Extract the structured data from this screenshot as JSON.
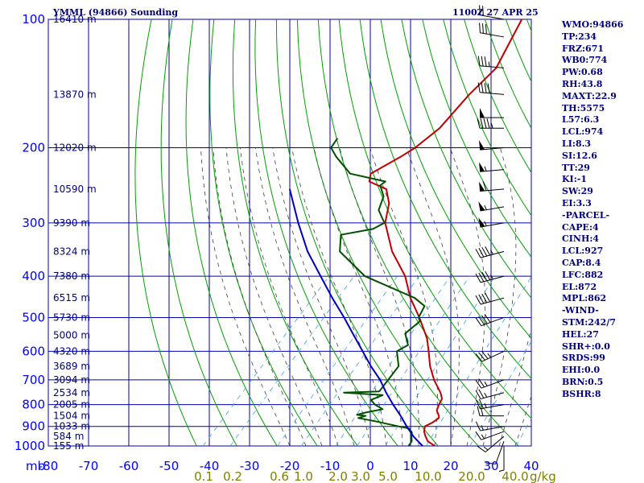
{
  "header": {
    "title": "YMML (94866) Sounding",
    "datetime": "1100Z 27 APR 25"
  },
  "colors": {
    "frame": "#000080",
    "grid": "#0000b0",
    "dry_adiabat": "#00a000",
    "moist_adiabat": "#404040",
    "mixing_ratio": "#40a0e0",
    "temperature": "#c00000",
    "dewpoint": "#005000",
    "parcel": "#0000c0",
    "pressure_label": "#0000ff",
    "mixing_label": "#808000",
    "index_text": "#000080"
  },
  "indices": [
    "WMO:94866",
    "TP:234",
    "FRZ:671",
    "WB0:774",
    "PW:0.68",
    "RH:43.8",
    "MAXT:22.9",
    "TH:5575",
    "L57:6.3",
    "LCL:974",
    "LI:8.3",
    "SI:12.6",
    "TT:29",
    "KI:-1",
    "SW:29",
    "EI:3.3",
    "-PARCEL-",
    "CAPE:4",
    "CINH:4",
    "LCL:927",
    "CAP:8.4",
    "LFC:882",
    "EL:872",
    "MPL:862",
    "-WIND-",
    "STM:242/7",
    "HEL:27",
    "SHR+:0.0",
    "SRDS:99",
    "EHI:0.0",
    "BRN:0.5",
    "BSHR:8"
  ],
  "chart_data": {
    "type": "line",
    "chart_kind": "Skew-T log-P sounding",
    "x_axis": {
      "unit_label": "mb",
      "ticks": [
        -80,
        -70,
        -60,
        -50,
        -40,
        -30,
        -20,
        -10,
        0,
        10,
        20,
        30,
        40
      ],
      "tick_labels": [
        "-80",
        "-70",
        "-60",
        "-50",
        "-40",
        "-30",
        "-20",
        "-10",
        "0",
        "10",
        "20",
        "30",
        "40"
      ],
      "xlim": [
        -80,
        40
      ]
    },
    "y_axis": {
      "scale": "log",
      "ticks": [
        100,
        200,
        300,
        400,
        500,
        600,
        700,
        800,
        900,
        1000
      ],
      "tick_labels": [
        "100",
        "200",
        "300",
        "400",
        "500",
        "600",
        "700",
        "800",
        "900",
        "1000"
      ],
      "ylim": [
        1000,
        100
      ]
    },
    "height_labels": [
      {
        "p": 100,
        "label": "16410 m"
      },
      {
        "p": 150,
        "label": "13870 m"
      },
      {
        "p": 200,
        "label": "12020 m"
      },
      {
        "p": 250,
        "label": "10590 m"
      },
      {
        "p": 300,
        "label": "9390 m"
      },
      {
        "p": 350,
        "label": "8324 m"
      },
      {
        "p": 400,
        "label": "7380 m"
      },
      {
        "p": 450,
        "label": "6515 m"
      },
      {
        "p": 500,
        "label": "5730 m"
      },
      {
        "p": 550,
        "label": "5000 m"
      },
      {
        "p": 600,
        "label": "4320 m"
      },
      {
        "p": 650,
        "label": "3689 m"
      },
      {
        "p": 700,
        "label": "3094 m"
      },
      {
        "p": 750,
        "label": "2534 m"
      },
      {
        "p": 800,
        "label": "2005 m"
      },
      {
        "p": 850,
        "label": "1504 m"
      },
      {
        "p": 900,
        "label": "1033 m"
      },
      {
        "p": 950,
        "label": "584 m"
      },
      {
        "p": 1000,
        "label": "155 m"
      }
    ],
    "mixing_ratio_labels": [
      "0.1",
      "0.2",
      "0.6",
      "1.0",
      "2.0",
      "3.0",
      "5.0",
      "10.0",
      "20.0",
      "40.0"
    ],
    "mixing_ratio_unit": "g/kg",
    "series": [
      {
        "key": "temperature",
        "points": [
          [
            1000,
            16
          ],
          [
            975,
            13.2
          ],
          [
            950,
            11.5
          ],
          [
            925,
            10
          ],
          [
            900,
            9
          ],
          [
            880,
            10
          ],
          [
            860,
            10.5
          ],
          [
            850,
            10
          ],
          [
            825,
            8.2
          ],
          [
            800,
            7.4
          ],
          [
            775,
            6.8
          ],
          [
            750,
            5.0
          ],
          [
            700,
            0.4
          ],
          [
            650,
            -3.8
          ],
          [
            600,
            -7.6
          ],
          [
            560,
            -11
          ],
          [
            500,
            -17.8
          ],
          [
            450,
            -24.6
          ],
          [
            400,
            -31
          ],
          [
            350,
            -40
          ],
          [
            300,
            -48.4
          ],
          [
            270,
            -52
          ],
          [
            250,
            -56
          ],
          [
            240,
            -62
          ],
          [
            230,
            -63.5
          ],
          [
            210,
            -60
          ],
          [
            200,
            -58.5
          ],
          [
            180,
            -57
          ],
          [
            150,
            -57.5
          ],
          [
            130,
            -57
          ],
          [
            100,
            -62
          ]
        ]
      },
      {
        "key": "dewpoint",
        "points": [
          [
            1000,
            9.5
          ],
          [
            975,
            9.2
          ],
          [
            950,
            8.0
          ],
          [
            930,
            7.2
          ],
          [
            910,
            5.6
          ],
          [
            900,
            2.5
          ],
          [
            875,
            -4.5
          ],
          [
            860,
            -9.5
          ],
          [
            850,
            -8.2
          ],
          [
            845,
            -10.6
          ],
          [
            835,
            -9.0
          ],
          [
            820,
            -5.5
          ],
          [
            800,
            -8.5
          ],
          [
            780,
            -10.6
          ],
          [
            760,
            -8.8
          ],
          [
            750,
            -19
          ],
          [
            745,
            -10.5
          ],
          [
            700,
            -11.0
          ],
          [
            650,
            -11.6
          ],
          [
            600,
            -15.5
          ],
          [
            580,
            -14.2
          ],
          [
            545,
            -17.6
          ],
          [
            510,
            -16.8
          ],
          [
            500,
            -18
          ],
          [
            470,
            -19.2
          ],
          [
            450,
            -23.5
          ],
          [
            400,
            -41
          ],
          [
            350,
            -53
          ],
          [
            320,
            -56.6
          ],
          [
            310,
            -50
          ],
          [
            300,
            -48.6
          ],
          [
            280,
            -53
          ],
          [
            260,
            -55
          ],
          [
            245,
            -58.4
          ],
          [
            240,
            -58
          ],
          [
            230,
            -68.6
          ],
          [
            210,
            -76
          ],
          [
            200,
            -79.4
          ],
          [
            190,
            -80
          ]
        ]
      },
      {
        "key": "parcel",
        "points": [
          [
            1000,
            13
          ],
          [
            950,
            8.5
          ],
          [
            900,
            4.5
          ],
          [
            850,
            0.5
          ],
          [
            800,
            -4
          ],
          [
            750,
            -8.5
          ],
          [
            700,
            -13
          ],
          [
            650,
            -18.5
          ],
          [
            600,
            -24
          ],
          [
            550,
            -30
          ],
          [
            500,
            -36.5
          ],
          [
            450,
            -44
          ],
          [
            400,
            -52
          ],
          [
            350,
            -61
          ],
          [
            300,
            -70
          ],
          [
            250,
            -80
          ]
        ]
      }
    ],
    "winds": [
      {
        "p": 1000,
        "dir": 180,
        "spd": 5
      },
      {
        "p": 975,
        "dir": 200,
        "spd": 10
      },
      {
        "p": 950,
        "dir": 230,
        "spd": 15
      },
      {
        "p": 925,
        "dir": 250,
        "spd": 15
      },
      {
        "p": 900,
        "dir": 260,
        "spd": 15
      },
      {
        "p": 850,
        "dir": 270,
        "spd": 20
      },
      {
        "p": 800,
        "dir": 260,
        "spd": 25
      },
      {
        "p": 750,
        "dir": 255,
        "spd": 25
      },
      {
        "p": 700,
        "dir": 250,
        "spd": 25
      },
      {
        "p": 600,
        "dir": 245,
        "spd": 35
      },
      {
        "p": 500,
        "dir": 250,
        "spd": 40
      },
      {
        "p": 450,
        "dir": 255,
        "spd": 40
      },
      {
        "p": 400,
        "dir": 255,
        "spd": 45
      },
      {
        "p": 350,
        "dir": 255,
        "spd": 45
      },
      {
        "p": 300,
        "dir": 260,
        "spd": 55
      },
      {
        "p": 275,
        "dir": 260,
        "spd": 55
      },
      {
        "p": 250,
        "dir": 265,
        "spd": 60
      },
      {
        "p": 225,
        "dir": 265,
        "spd": 55
      },
      {
        "p": 200,
        "dir": 265,
        "spd": 50
      },
      {
        "p": 180,
        "dir": 270,
        "spd": 45
      },
      {
        "p": 170,
        "dir": 270,
        "spd": 50
      },
      {
        "p": 150,
        "dir": 275,
        "spd": 40
      },
      {
        "p": 130,
        "dir": 275,
        "spd": 35
      },
      {
        "p": 110,
        "dir": 280,
        "spd": 30
      },
      {
        "p": 100,
        "dir": 280,
        "spd": 20
      }
    ]
  }
}
